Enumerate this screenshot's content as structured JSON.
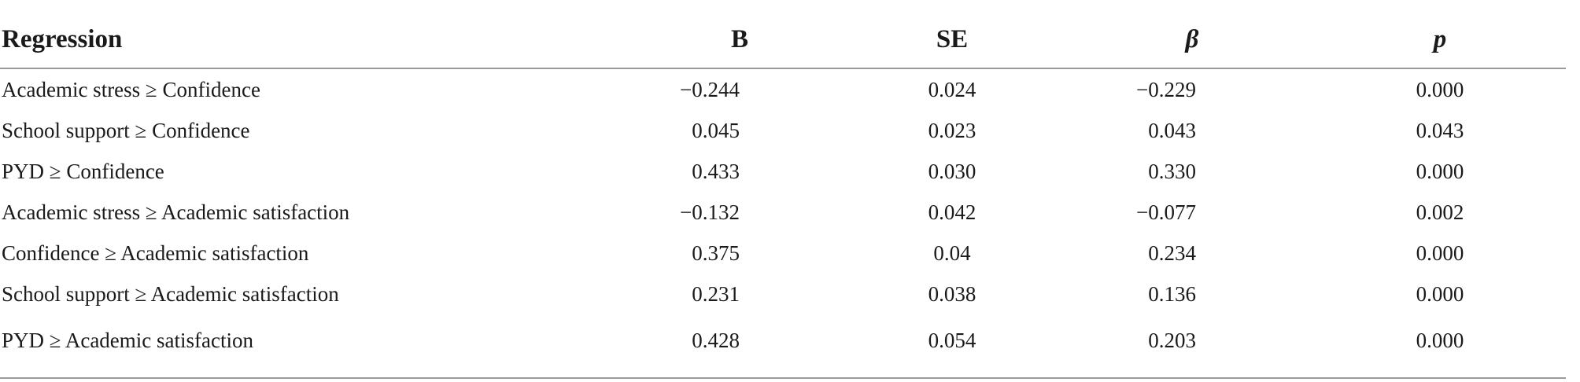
{
  "table": {
    "headers": {
      "regression": "Regression",
      "b": "B",
      "se": "SE",
      "beta": "β",
      "p": "p"
    },
    "rows": [
      {
        "regression": "Academic stress ≥ Confidence",
        "b": "−0.244",
        "se": "0.024",
        "beta": "−0.229",
        "p": "0.000"
      },
      {
        "regression": "School support ≥ Confidence",
        "b": "0.045",
        "se": "0.023",
        "beta": "0.043",
        "p": "0.043"
      },
      {
        "regression": "PYD ≥ Confidence",
        "b": "0.433",
        "se": "0.030",
        "beta": "0.330",
        "p": "0.000"
      },
      {
        "regression": "Academic stress ≥ Academic satisfaction",
        "b": "−0.132",
        "se": "0.042",
        "beta": "−0.077",
        "p": "0.002"
      },
      {
        "regression": "Confidence ≥ Academic satisfaction",
        "b": "0.375",
        "se": "0.04",
        "beta": "0.234",
        "p": "0.000"
      },
      {
        "regression": "School support ≥ Academic satisfaction",
        "b": "0.231",
        "se": "0.038",
        "beta": "0.136",
        "p": "0.000"
      },
      {
        "regression": "PYD ≥ Academic satisfaction",
        "b": "0.428",
        "se": "0.054",
        "beta": "0.203",
        "p": "0.000"
      }
    ]
  }
}
